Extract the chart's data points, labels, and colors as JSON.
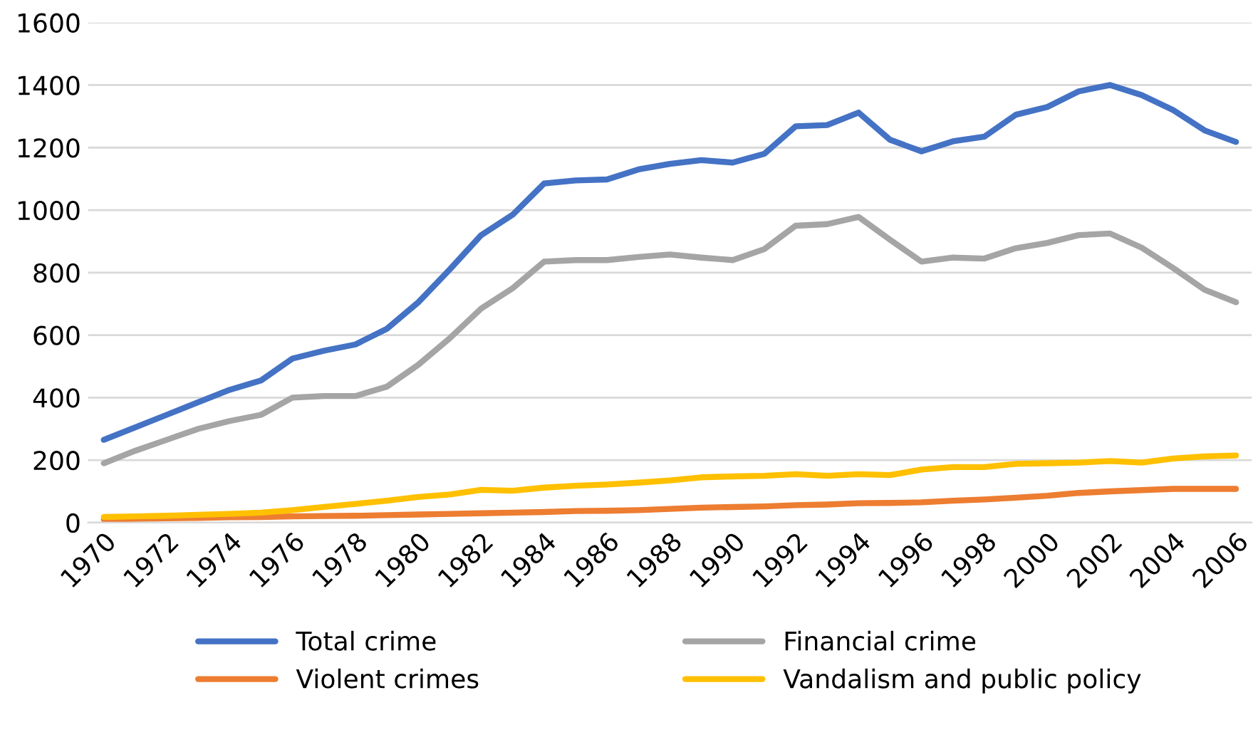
{
  "chart_data": {
    "type": "line",
    "categories": [
      "1970",
      null,
      "1972",
      null,
      "1974",
      null,
      "1976",
      null,
      "1978",
      null,
      "1980",
      null,
      "1982",
      null,
      "1984",
      null,
      "1986",
      null,
      "1988",
      null,
      "1990",
      null,
      "1992",
      null,
      "1994",
      null,
      "1996",
      null,
      "1998",
      null,
      "2000",
      null,
      "2002",
      null,
      "2004",
      null,
      "2006"
    ],
    "series": [
      {
        "name": "Total crime",
        "color": "#4472c4",
        "values": [
          265,
          305,
          345,
          385,
          425,
          455,
          525,
          550,
          570,
          620,
          705,
          810,
          920,
          985,
          1085,
          1095,
          1098,
          1130,
          1148,
          1160,
          1152,
          1180,
          1268,
          1272,
          1312,
          1225,
          1188,
          1220,
          1235,
          1305,
          1330,
          1380,
          1400,
          1368,
          1320,
          1255,
          1218
        ]
      },
      {
        "name": "Violent crimes",
        "color": "#ed7d31",
        "values": [
          10,
          12,
          14,
          15,
          17,
          18,
          20,
          21,
          22,
          24,
          26,
          28,
          30,
          32,
          34,
          37,
          38,
          40,
          44,
          48,
          50,
          52,
          56,
          58,
          62,
          63,
          65,
          70,
          74,
          80,
          86,
          95,
          100,
          104,
          108,
          108,
          108
        ]
      },
      {
        "name": "Financial crime",
        "color": "#a5a5a5",
        "values": [
          190,
          230,
          265,
          300,
          325,
          345,
          400,
          405,
          405,
          435,
          505,
          590,
          685,
          750,
          835,
          840,
          840,
          850,
          858,
          848,
          840,
          875,
          950,
          955,
          978,
          905,
          835,
          848,
          845,
          878,
          895,
          920,
          925,
          880,
          815,
          745,
          705
        ]
      },
      {
        "name": "Vandalism and public policy",
        "color": "#ffc000",
        "values": [
          18,
          20,
          22,
          25,
          28,
          32,
          40,
          50,
          60,
          70,
          82,
          90,
          105,
          102,
          112,
          118,
          122,
          128,
          135,
          145,
          148,
          150,
          155,
          150,
          155,
          152,
          170,
          178,
          178,
          188,
          190,
          192,
          197,
          192,
          205,
          212,
          215
        ]
      }
    ],
    "ylim": [
      0,
      1600
    ],
    "yticks": [
      0,
      200,
      400,
      600,
      800,
      1000,
      1200,
      1400,
      1600
    ],
    "grid": "y",
    "legend": "bottom",
    "marker": "none",
    "line_style": "solid"
  }
}
